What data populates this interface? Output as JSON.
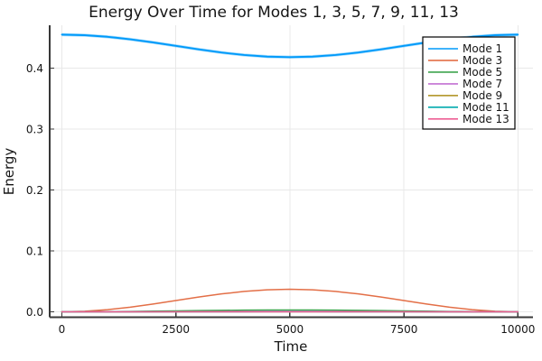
{
  "chart_data": {
    "type": "line",
    "title": "Energy Over Time for Modes 1, 3, 5, 7, 9, 11, 13",
    "xlabel": "Time",
    "ylabel": "Energy",
    "xlim": [
      0,
      10000
    ],
    "ylim": [
      -0.009,
      0.47
    ],
    "grid": true,
    "legend_position": "top-right",
    "x_ticks": [
      0,
      2500,
      5000,
      7500,
      10000
    ],
    "x_tick_labels": [
      "0",
      "2500",
      "5000",
      "7500",
      "10000"
    ],
    "y_ticks": [
      0.0,
      0.1,
      0.2,
      0.3,
      0.4
    ],
    "y_tick_labels": [
      "0.0",
      "0.1",
      "0.2",
      "0.3",
      "0.4"
    ],
    "x": [
      0,
      500,
      1000,
      1500,
      2000,
      2500,
      3000,
      3500,
      4000,
      4500,
      5000,
      5500,
      6000,
      6500,
      7000,
      7500,
      8000,
      8500,
      9000,
      9500,
      10000
    ],
    "series": [
      {
        "name": "Mode 1",
        "color": "#009afa",
        "values": [
          0.455,
          0.45409,
          0.45147,
          0.44737,
          0.44222,
          0.4365,
          0.43078,
          0.42563,
          0.42153,
          0.41891,
          0.418,
          0.41891,
          0.42153,
          0.42563,
          0.43078,
          0.4365,
          0.44222,
          0.44737,
          0.45147,
          0.45409,
          0.455
        ]
      },
      {
        "name": "Mode 3",
        "color": "#e36f47",
        "values": [
          0.0,
          0.00091,
          0.00353,
          0.00763,
          0.01278,
          0.0185,
          0.02422,
          0.02937,
          0.03347,
          0.03609,
          0.037,
          0.03609,
          0.03347,
          0.02937,
          0.02422,
          0.0185,
          0.01278,
          0.00763,
          0.00353,
          0.00091,
          0.0
        ]
      },
      {
        "name": "Mode 5",
        "color": "#3ea44e",
        "values": [
          0.0,
          7e-05,
          0.00029,
          0.00062,
          0.00104,
          0.0015,
          0.00196,
          0.00238,
          0.00271,
          0.00293,
          0.003,
          0.00293,
          0.00271,
          0.00238,
          0.00196,
          0.0015,
          0.00104,
          0.00062,
          0.00029,
          7e-05,
          0.0
        ]
      },
      {
        "name": "Mode 7",
        "color": "#c271d2",
        "values": [
          0.0,
          2e-05,
          8e-05,
          0.00016,
          0.00028,
          0.0004,
          0.00052,
          0.00064,
          0.00072,
          0.00078,
          0.0008,
          0.00078,
          0.00072,
          0.00064,
          0.00052,
          0.0004,
          0.00028,
          0.00016,
          8e-05,
          2e-05,
          0.0
        ]
      },
      {
        "name": "Mode 9",
        "color": "#ac8e17",
        "values": [
          0.0,
          1e-05,
          2e-05,
          4e-05,
          7e-05,
          0.0001,
          0.00013,
          0.00016,
          0.00018,
          0.0002,
          0.0002,
          0.0002,
          0.00018,
          0.00016,
          0.00013,
          0.0001,
          7e-05,
          4e-05,
          2e-05,
          1e-05,
          0.0
        ]
      },
      {
        "name": "Mode 11",
        "color": "#00aaae",
        "values": [
          0.0,
          0.0,
          1e-05,
          2e-05,
          3e-05,
          5e-05,
          7e-05,
          8e-05,
          9e-05,
          0.0001,
          0.0001,
          0.0001,
          9e-05,
          8e-05,
          7e-05,
          5e-05,
          3e-05,
          2e-05,
          1e-05,
          0.0,
          0.0
        ]
      },
      {
        "name": "Mode 13",
        "color": "#ed5e93",
        "values": [
          0.0,
          0.0,
          0.0,
          0.0,
          1e-05,
          1e-05,
          2e-05,
          2e-05,
          2e-05,
          2e-05,
          3e-05,
          2e-05,
          2e-05,
          2e-05,
          2e-05,
          1e-05,
          1e-05,
          0.0,
          0.0,
          0.0,
          0.0
        ]
      }
    ],
    "style": {
      "background": "#ffffff",
      "grid_color": "#e8e8e8",
      "axis_color": "#383838",
      "text_color": "#151515",
      "legend_border": "#000000",
      "legend_background": "#ffffff"
    }
  }
}
